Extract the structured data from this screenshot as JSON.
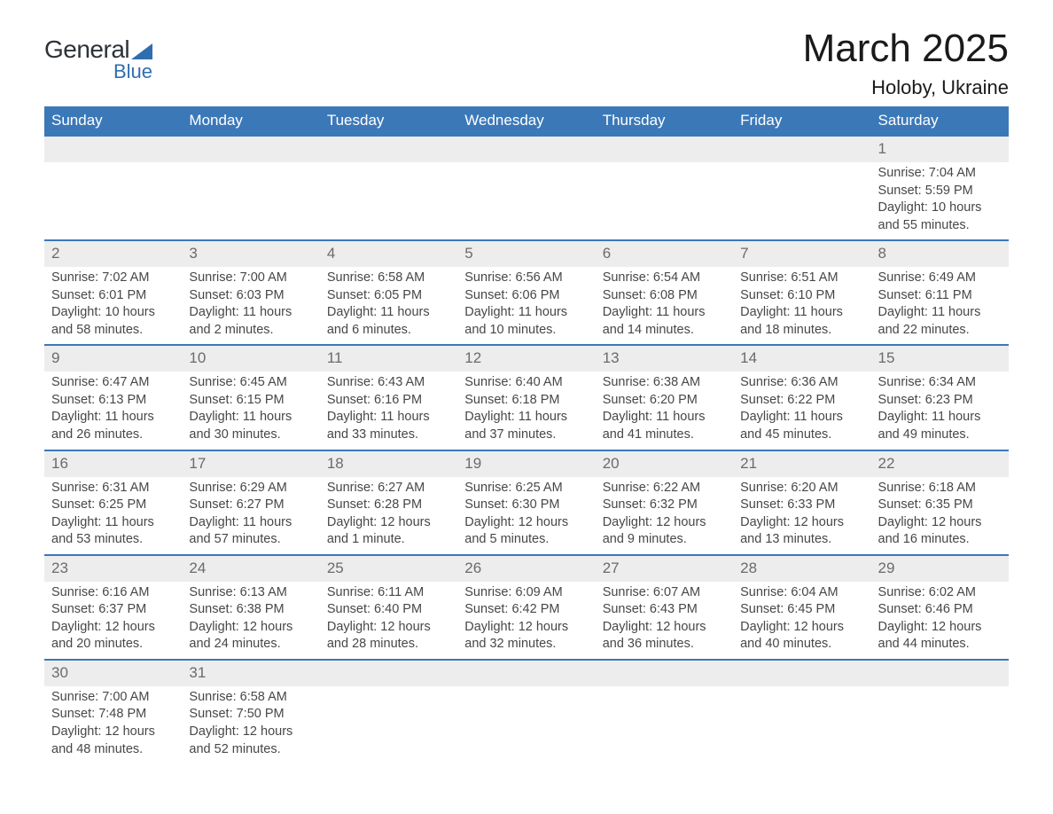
{
  "logo": {
    "word1": "General",
    "word2": "Blue"
  },
  "title": "March 2025",
  "location": "Holoby, Ukraine",
  "colors": {
    "header_bg": "#3b78b8",
    "header_text": "#ffffff",
    "row_border": "#3b78b8",
    "daynum_bg": "#ededed",
    "daynum_text": "#6b6b6b",
    "body_text": "#474747",
    "logo_accent": "#2f6eaf"
  },
  "typography": {
    "title_fontsize": 44,
    "location_fontsize": 22,
    "dayheader_fontsize": 17,
    "cell_fontsize": 14.5
  },
  "day_headers": [
    "Sunday",
    "Monday",
    "Tuesday",
    "Wednesday",
    "Thursday",
    "Friday",
    "Saturday"
  ],
  "weeks": [
    [
      null,
      null,
      null,
      null,
      null,
      null,
      {
        "n": "1",
        "sr": "Sunrise: 7:04 AM",
        "ss": "Sunset: 5:59 PM",
        "d1": "Daylight: 10 hours",
        "d2": "and 55 minutes."
      }
    ],
    [
      {
        "n": "2",
        "sr": "Sunrise: 7:02 AM",
        "ss": "Sunset: 6:01 PM",
        "d1": "Daylight: 10 hours",
        "d2": "and 58 minutes."
      },
      {
        "n": "3",
        "sr": "Sunrise: 7:00 AM",
        "ss": "Sunset: 6:03 PM",
        "d1": "Daylight: 11 hours",
        "d2": "and 2 minutes."
      },
      {
        "n": "4",
        "sr": "Sunrise: 6:58 AM",
        "ss": "Sunset: 6:05 PM",
        "d1": "Daylight: 11 hours",
        "d2": "and 6 minutes."
      },
      {
        "n": "5",
        "sr": "Sunrise: 6:56 AM",
        "ss": "Sunset: 6:06 PM",
        "d1": "Daylight: 11 hours",
        "d2": "and 10 minutes."
      },
      {
        "n": "6",
        "sr": "Sunrise: 6:54 AM",
        "ss": "Sunset: 6:08 PM",
        "d1": "Daylight: 11 hours",
        "d2": "and 14 minutes."
      },
      {
        "n": "7",
        "sr": "Sunrise: 6:51 AM",
        "ss": "Sunset: 6:10 PM",
        "d1": "Daylight: 11 hours",
        "d2": "and 18 minutes."
      },
      {
        "n": "8",
        "sr": "Sunrise: 6:49 AM",
        "ss": "Sunset: 6:11 PM",
        "d1": "Daylight: 11 hours",
        "d2": "and 22 minutes."
      }
    ],
    [
      {
        "n": "9",
        "sr": "Sunrise: 6:47 AM",
        "ss": "Sunset: 6:13 PM",
        "d1": "Daylight: 11 hours",
        "d2": "and 26 minutes."
      },
      {
        "n": "10",
        "sr": "Sunrise: 6:45 AM",
        "ss": "Sunset: 6:15 PM",
        "d1": "Daylight: 11 hours",
        "d2": "and 30 minutes."
      },
      {
        "n": "11",
        "sr": "Sunrise: 6:43 AM",
        "ss": "Sunset: 6:16 PM",
        "d1": "Daylight: 11 hours",
        "d2": "and 33 minutes."
      },
      {
        "n": "12",
        "sr": "Sunrise: 6:40 AM",
        "ss": "Sunset: 6:18 PM",
        "d1": "Daylight: 11 hours",
        "d2": "and 37 minutes."
      },
      {
        "n": "13",
        "sr": "Sunrise: 6:38 AM",
        "ss": "Sunset: 6:20 PM",
        "d1": "Daylight: 11 hours",
        "d2": "and 41 minutes."
      },
      {
        "n": "14",
        "sr": "Sunrise: 6:36 AM",
        "ss": "Sunset: 6:22 PM",
        "d1": "Daylight: 11 hours",
        "d2": "and 45 minutes."
      },
      {
        "n": "15",
        "sr": "Sunrise: 6:34 AM",
        "ss": "Sunset: 6:23 PM",
        "d1": "Daylight: 11 hours",
        "d2": "and 49 minutes."
      }
    ],
    [
      {
        "n": "16",
        "sr": "Sunrise: 6:31 AM",
        "ss": "Sunset: 6:25 PM",
        "d1": "Daylight: 11 hours",
        "d2": "and 53 minutes."
      },
      {
        "n": "17",
        "sr": "Sunrise: 6:29 AM",
        "ss": "Sunset: 6:27 PM",
        "d1": "Daylight: 11 hours",
        "d2": "and 57 minutes."
      },
      {
        "n": "18",
        "sr": "Sunrise: 6:27 AM",
        "ss": "Sunset: 6:28 PM",
        "d1": "Daylight: 12 hours",
        "d2": "and 1 minute."
      },
      {
        "n": "19",
        "sr": "Sunrise: 6:25 AM",
        "ss": "Sunset: 6:30 PM",
        "d1": "Daylight: 12 hours",
        "d2": "and 5 minutes."
      },
      {
        "n": "20",
        "sr": "Sunrise: 6:22 AM",
        "ss": "Sunset: 6:32 PM",
        "d1": "Daylight: 12 hours",
        "d2": "and 9 minutes."
      },
      {
        "n": "21",
        "sr": "Sunrise: 6:20 AM",
        "ss": "Sunset: 6:33 PM",
        "d1": "Daylight: 12 hours",
        "d2": "and 13 minutes."
      },
      {
        "n": "22",
        "sr": "Sunrise: 6:18 AM",
        "ss": "Sunset: 6:35 PM",
        "d1": "Daylight: 12 hours",
        "d2": "and 16 minutes."
      }
    ],
    [
      {
        "n": "23",
        "sr": "Sunrise: 6:16 AM",
        "ss": "Sunset: 6:37 PM",
        "d1": "Daylight: 12 hours",
        "d2": "and 20 minutes."
      },
      {
        "n": "24",
        "sr": "Sunrise: 6:13 AM",
        "ss": "Sunset: 6:38 PM",
        "d1": "Daylight: 12 hours",
        "d2": "and 24 minutes."
      },
      {
        "n": "25",
        "sr": "Sunrise: 6:11 AM",
        "ss": "Sunset: 6:40 PM",
        "d1": "Daylight: 12 hours",
        "d2": "and 28 minutes."
      },
      {
        "n": "26",
        "sr": "Sunrise: 6:09 AM",
        "ss": "Sunset: 6:42 PM",
        "d1": "Daylight: 12 hours",
        "d2": "and 32 minutes."
      },
      {
        "n": "27",
        "sr": "Sunrise: 6:07 AM",
        "ss": "Sunset: 6:43 PM",
        "d1": "Daylight: 12 hours",
        "d2": "and 36 minutes."
      },
      {
        "n": "28",
        "sr": "Sunrise: 6:04 AM",
        "ss": "Sunset: 6:45 PM",
        "d1": "Daylight: 12 hours",
        "d2": "and 40 minutes."
      },
      {
        "n": "29",
        "sr": "Sunrise: 6:02 AM",
        "ss": "Sunset: 6:46 PM",
        "d1": "Daylight: 12 hours",
        "d2": "and 44 minutes."
      }
    ],
    [
      {
        "n": "30",
        "sr": "Sunrise: 7:00 AM",
        "ss": "Sunset: 7:48 PM",
        "d1": "Daylight: 12 hours",
        "d2": "and 48 minutes."
      },
      {
        "n": "31",
        "sr": "Sunrise: 6:58 AM",
        "ss": "Sunset: 7:50 PM",
        "d1": "Daylight: 12 hours",
        "d2": "and 52 minutes."
      },
      null,
      null,
      null,
      null,
      null
    ]
  ]
}
